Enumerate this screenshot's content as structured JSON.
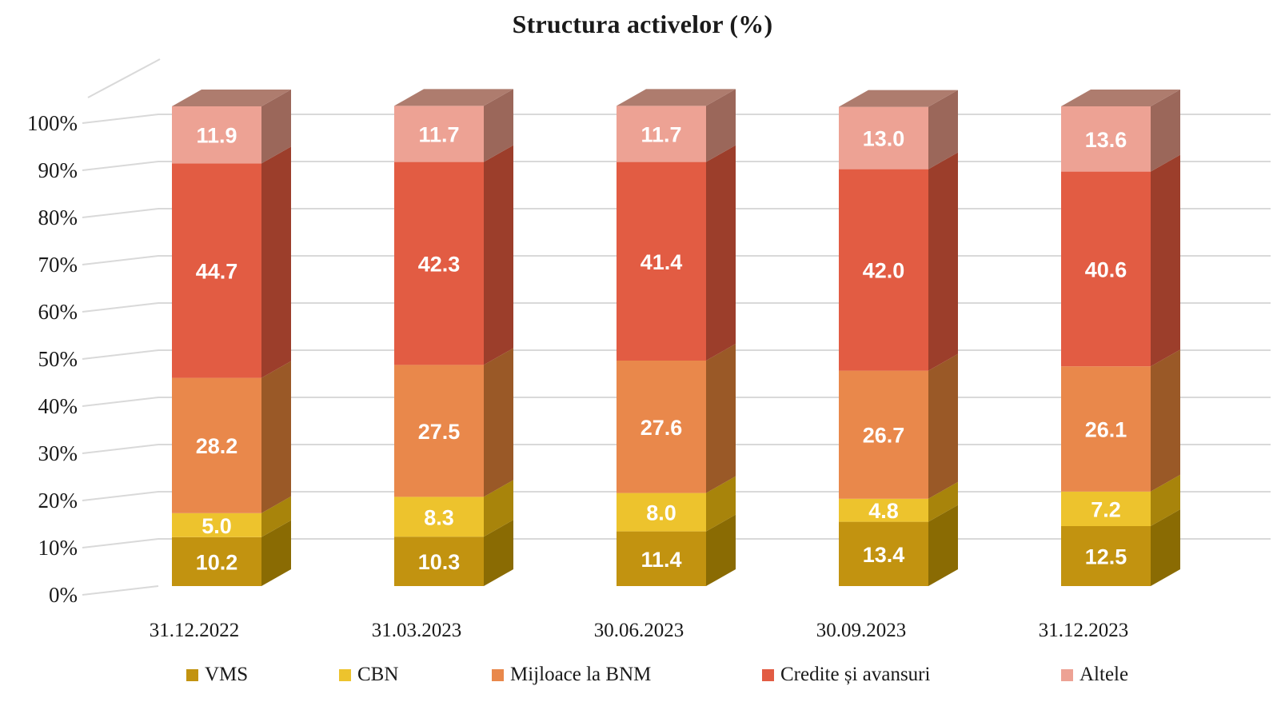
{
  "title": "Structura activelor (%)",
  "chart_data": {
    "type": "bar",
    "variant": "3d-stacked-column",
    "title": "Structura activelor (%)",
    "categories": [
      "31.12.2022",
      "31.03.2023",
      "30.06.2023",
      "30.09.2023",
      "31.12.2023"
    ],
    "series": [
      {
        "name": "VMS",
        "values": [
          10.2,
          10.3,
          11.4,
          13.4,
          12.5
        ],
        "color": "#C29310",
        "side_color": "#8A6B03"
      },
      {
        "name": "CBN",
        "values": [
          5.0,
          8.3,
          8.0,
          4.8,
          7.2
        ],
        "color": "#EDC32D",
        "side_color": "#A8840B"
      },
      {
        "name": "Mijloace la BNM",
        "values": [
          28.2,
          27.5,
          27.6,
          26.7,
          26.1
        ],
        "color": "#E9884B",
        "side_color": "#9A5927"
      },
      {
        "name": "Credite și avansuri",
        "values": [
          44.7,
          42.3,
          41.4,
          42.0,
          40.6
        ],
        "color": "#E25C43",
        "side_color": "#9C3E2B"
      },
      {
        "name": "Altele",
        "values": [
          11.9,
          11.7,
          11.7,
          13.0,
          13.6
        ],
        "color": "#EDA294",
        "side_color": "#9B675A"
      }
    ],
    "top_face_color": "#AE7C6E",
    "y_tick_labels": [
      "0%",
      "10%",
      "20%",
      "30%",
      "40%",
      "50%",
      "60%",
      "70%",
      "80%",
      "90%",
      "100%"
    ],
    "ylim": [
      0,
      100
    ],
    "grid": true,
    "gridline_color": "#D9D9D9",
    "text_color": "#1A1A1A",
    "value_label_color": "#FFFFFF",
    "value_label_decimals": 1,
    "legend_position": "bottom"
  }
}
